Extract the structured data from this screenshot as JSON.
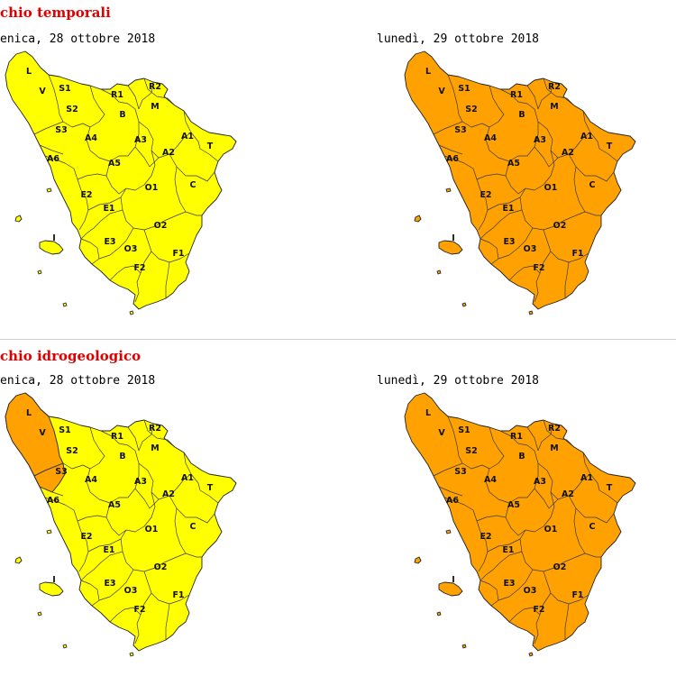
{
  "sections": [
    {
      "title": "chio temporali",
      "panels": [
        {
          "date": "enica, 28 ottobre 2018",
          "fill": "#ffff00",
          "overrides": {}
        },
        {
          "date": "lunedì, 29 ottobre 2018",
          "fill": "#ffa100",
          "overrides": {}
        }
      ]
    },
    {
      "title": "chio idrogeologico",
      "panels": [
        {
          "date": "enica, 28 ottobre 2018",
          "fill": "#ffff00",
          "overrides": {
            "L": "#ffa100",
            "V": "#ffa100"
          }
        },
        {
          "date": "lunedì, 29 ottobre 2018",
          "fill": "#ffa100",
          "overrides": {}
        }
      ]
    }
  ],
  "zones": {
    "L": "L",
    "V": "V",
    "S1": "S1",
    "S2": "S2",
    "S3": "S3",
    "R1": "R1",
    "R2": "R2",
    "B": "B",
    "M": "M",
    "A1": "A1",
    "A2": "A2",
    "A3": "A3",
    "A4": "A4",
    "A5": "A5",
    "A6": "A6",
    "T": "T",
    "C": "C",
    "O1": "O1",
    "O2": "O2",
    "O3": "O3",
    "E1": "E1",
    "E2": "E2",
    "E3": "E3",
    "F1": "F1",
    "F2": "F2",
    "I": "I"
  },
  "colors": {
    "yellow": "#ffff00",
    "orange": "#ffa100",
    "title": "#e10000"
  }
}
